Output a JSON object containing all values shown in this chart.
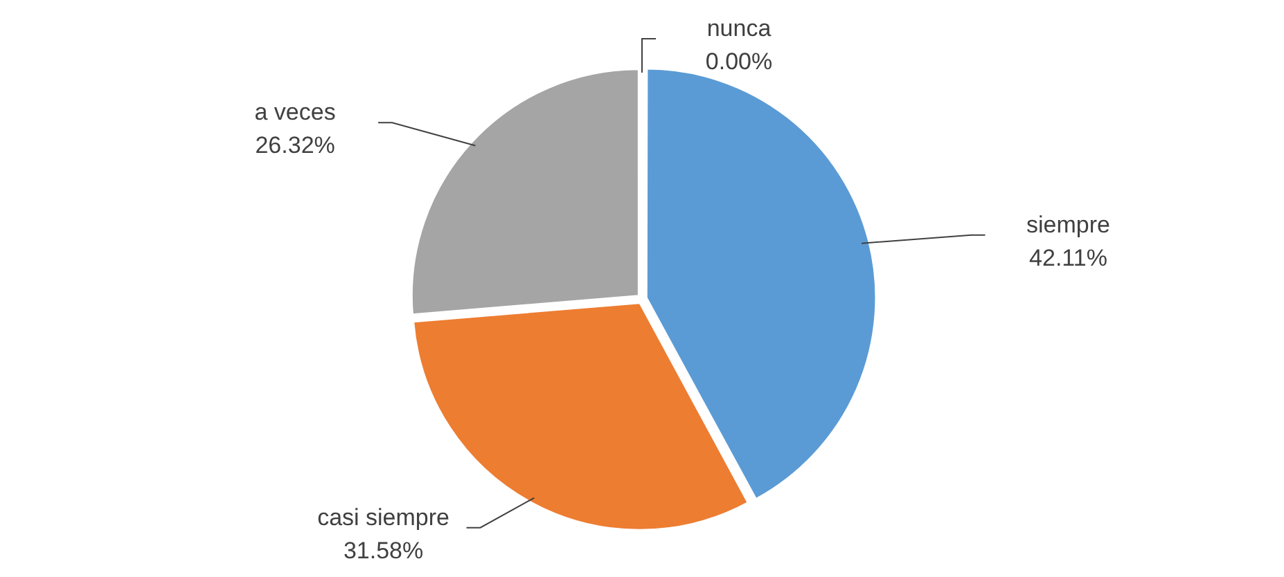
{
  "chart_data": {
    "type": "pie",
    "categories": [
      "siempre",
      "casi siempre",
      "a veces",
      "nunca"
    ],
    "values": [
      42.11,
      31.58,
      26.32,
      0.0
    ],
    "colors": [
      "#5b9bd5",
      "#ed7d31",
      "#a5a5a5",
      "#ffc000"
    ],
    "value_labels": [
      "42.11%",
      "31.58%",
      "26.32%",
      "0.00%"
    ],
    "legend": false
  }
}
